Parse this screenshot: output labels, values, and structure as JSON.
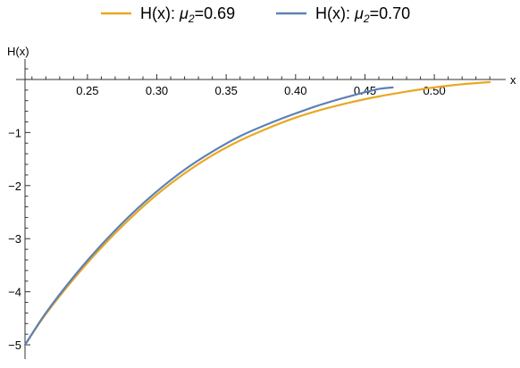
{
  "chart_data": {
    "type": "line",
    "xlabel": "x",
    "ylabel": "H(x)",
    "xlim": [
      0.205,
      0.545
    ],
    "ylim": [
      -5.1,
      0.1
    ],
    "xticks": [
      0.25,
      0.3,
      0.35,
      0.4,
      0.45,
      0.5
    ],
    "xtick_labels": [
      "0.25",
      "0.30",
      "0.35",
      "0.40",
      "0.45",
      "0.50"
    ],
    "yticks": [
      -1,
      -2,
      -3,
      -4,
      -5
    ],
    "ytick_labels": [
      "−1",
      "−2",
      "−3",
      "−4",
      "−5"
    ],
    "grid": false,
    "legend_position": "top-center",
    "series": [
      {
        "name": "H(x): μ2=0.69",
        "name_prefix": "H(x): ",
        "name_mu": "μ",
        "name_sub": "2",
        "name_suffix": "=0.69",
        "color": "#E8A822",
        "x": [
          0.205,
          0.22,
          0.24,
          0.26,
          0.28,
          0.3,
          0.32,
          0.34,
          0.36,
          0.38,
          0.4,
          0.42,
          0.44,
          0.46,
          0.48,
          0.5,
          0.52,
          0.54
        ],
        "y": [
          -5.0,
          -4.42,
          -3.76,
          -3.17,
          -2.64,
          -2.17,
          -1.77,
          -1.43,
          -1.15,
          -0.92,
          -0.72,
          -0.56,
          -0.43,
          -0.32,
          -0.23,
          -0.15,
          -0.09,
          -0.05
        ]
      },
      {
        "name": "H(x): μ2=0.70",
        "name_prefix": "H(x): ",
        "name_mu": "μ",
        "name_sub": "2",
        "name_suffix": "=0.70",
        "color": "#5E81B5",
        "x": [
          0.205,
          0.22,
          0.24,
          0.26,
          0.28,
          0.3,
          0.32,
          0.34,
          0.36,
          0.38,
          0.4,
          0.42,
          0.44,
          0.46,
          0.47
        ],
        "y": [
          -5.0,
          -4.4,
          -3.72,
          -3.12,
          -2.58,
          -2.11,
          -1.7,
          -1.36,
          -1.07,
          -0.84,
          -0.64,
          -0.46,
          -0.31,
          -0.18,
          -0.15
        ]
      }
    ]
  }
}
